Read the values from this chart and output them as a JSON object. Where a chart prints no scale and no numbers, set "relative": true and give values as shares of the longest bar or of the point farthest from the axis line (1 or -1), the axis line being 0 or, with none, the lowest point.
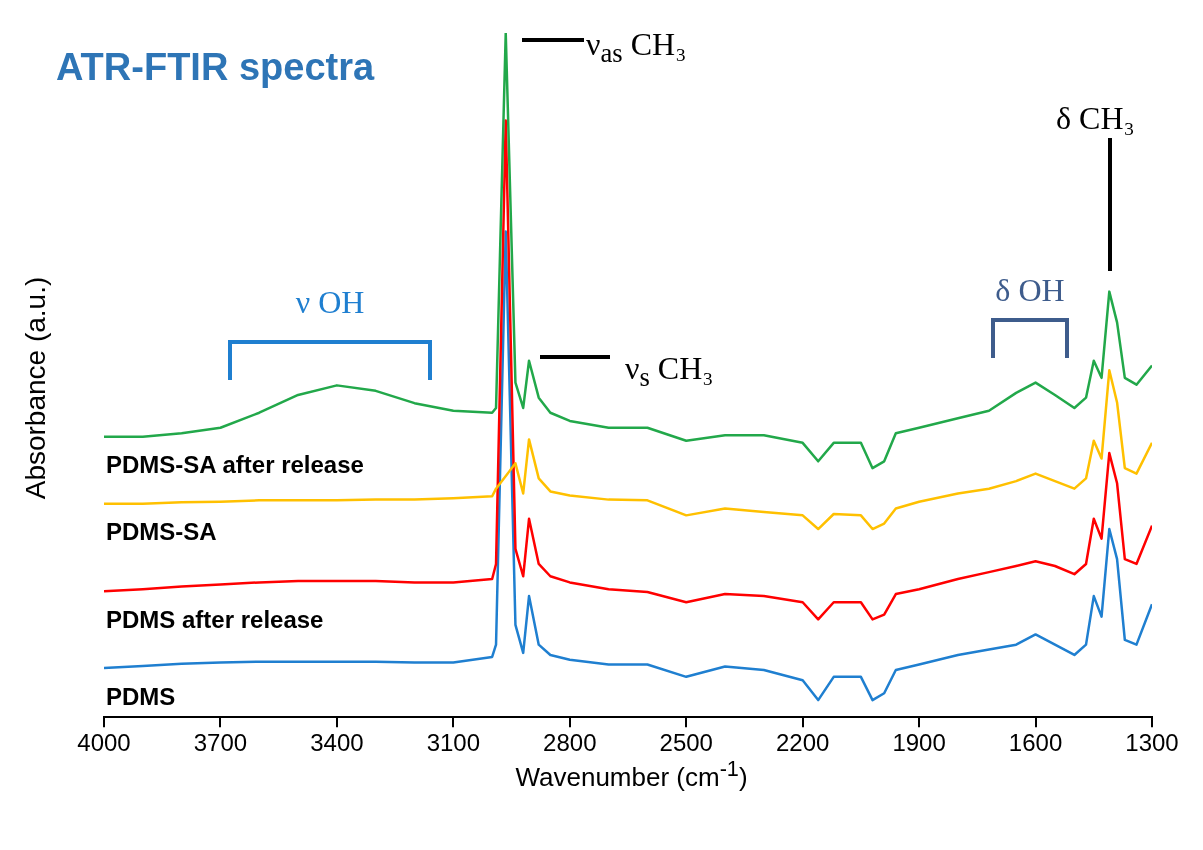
{
  "chart_data": {
    "type": "line",
    "title": "ATR-FTIR spectra",
    "xlabel": "Wavenumber (cm$^{-1}$)",
    "ylabel": "Absorbance (a.u.)",
    "relative": true,
    "x": [
      4000,
      3900,
      3800,
      3700,
      3600,
      3500,
      3400,
      3300,
      3200,
      3100,
      3000,
      2990,
      2965,
      2940,
      2920,
      2905,
      2880,
      2850,
      2800,
      2700,
      2600,
      2500,
      2400,
      2300,
      2200,
      2160,
      2120,
      2050,
      2020,
      1990,
      1960,
      1900,
      1800,
      1720,
      1650,
      1600,
      1550,
      1500,
      1470,
      1450,
      1430,
      1410,
      1390,
      1370,
      1340,
      1300
    ],
    "xlim": [
      4000,
      1300
    ],
    "xticks": [
      4000,
      3700,
      3400,
      3100,
      2800,
      2500,
      2200,
      1900,
      1600,
      1300
    ],
    "series": [
      {
        "name": "PDMS-SA after release",
        "color": "#22a84a",
        "values": [
          0.41,
          0.41,
          0.415,
          0.423,
          0.445,
          0.471,
          0.485,
          0.477,
          0.459,
          0.448,
          0.445,
          0.452,
          1,
          0.489,
          0.452,
          0.521,
          0.467,
          0.445,
          0.433,
          0.423,
          0.423,
          0.404,
          0.412,
          0.412,
          0.401,
          0.374,
          0.401,
          0.401,
          0.364,
          0.374,
          0.415,
          0.423,
          0.437,
          0.448,
          0.474,
          0.489,
          0.471,
          0.452,
          0.467,
          0.521,
          0.496,
          0.622,
          0.577,
          0.496,
          0.486,
          0.514
        ]
      },
      {
        "name": "PDMS-SA",
        "color": "#ffc000",
        "values": [
          0.312,
          0.312,
          0.314,
          0.315,
          0.317,
          0.317,
          0.317,
          0.318,
          0.318,
          0.32,
          0.323,
          0.334,
          null,
          0.371,
          0.327,
          0.406,
          0.349,
          0.33,
          0.324,
          0.318,
          0.317,
          0.295,
          0.305,
          0.3,
          0.295,
          0.275,
          0.297,
          0.295,
          0.275,
          0.283,
          0.305,
          0.315,
          0.327,
          0.334,
          0.345,
          0.356,
          0.345,
          0.334,
          0.349,
          0.404,
          0.378,
          0.507,
          0.46,
          0.364,
          0.356,
          0.401
        ]
      },
      {
        "name": "PDMS after release",
        "color": "#ff0000",
        "values": [
          0.184,
          0.187,
          0.191,
          0.194,
          0.197,
          0.199,
          0.199,
          0.199,
          0.197,
          0.197,
          0.202,
          0.224,
          0.872,
          0.246,
          0.206,
          0.29,
          0.224,
          0.206,
          0.197,
          0.187,
          0.183,
          0.168,
          0.18,
          0.177,
          0.168,
          0.143,
          0.168,
          0.168,
          0.143,
          0.15,
          0.18,
          0.187,
          0.202,
          0.212,
          0.221,
          0.228,
          0.221,
          0.209,
          0.224,
          0.29,
          0.261,
          0.386,
          0.342,
          0.231,
          0.224,
          0.28
        ]
      },
      {
        "name": "PDMS",
        "color": "#1f7fd0",
        "values": [
          0.072,
          0.075,
          0.078,
          0.08,
          0.081,
          0.081,
          0.081,
          0.081,
          0.08,
          0.08,
          0.088,
          0.106,
          0.71,
          0.135,
          0.094,
          0.177,
          0.106,
          0.091,
          0.084,
          0.077,
          0.077,
          0.059,
          0.074,
          0.069,
          0.054,
          0.025,
          0.059,
          0.059,
          0.025,
          0.035,
          0.069,
          0.077,
          0.091,
          0.099,
          0.106,
          0.121,
          0.106,
          0.091,
          0.106,
          0.177,
          0.147,
          0.275,
          0.231,
          0.113,
          0.106,
          0.165
        ]
      }
    ],
    "annotations": [
      "ν$_{as}$ CH₃",
      "ν$_{s}$ CH₃",
      "δ CH₃",
      "ν OH",
      "δ OH"
    ]
  }
}
